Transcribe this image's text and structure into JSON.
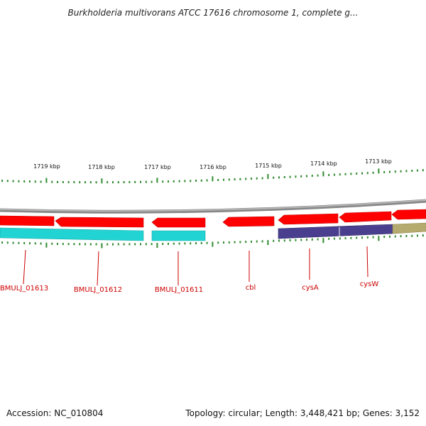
{
  "title": "Burkholderia multivorans ATCC 17616 chromosome 1, complete g...",
  "ruler_labels": [
    "1719 kbp",
    "1718 kbp",
    "1717 kbp",
    "1716 kbp",
    "1715 kbp",
    "1714 kbp",
    "1713 kbp"
  ],
  "genes": [
    "BMULJ_01613",
    "BMULJ_01612",
    "BMULJ_01611",
    "cbl",
    "cysA",
    "cysW"
  ],
  "footer": {
    "accession": "Accession: NC_010804",
    "topology": "Topology: circular; Length: 3,448,421 bp; Genes: 3,152"
  },
  "colors": {
    "cds": "#ff0000",
    "feature_cyan": "#22d3d3",
    "feature_purple": "#4a3f8f",
    "feature_khaki": "#b5ab6e",
    "ticks": "#2f8a2f",
    "label": "#cc0000",
    "backbone": "#888888"
  }
}
